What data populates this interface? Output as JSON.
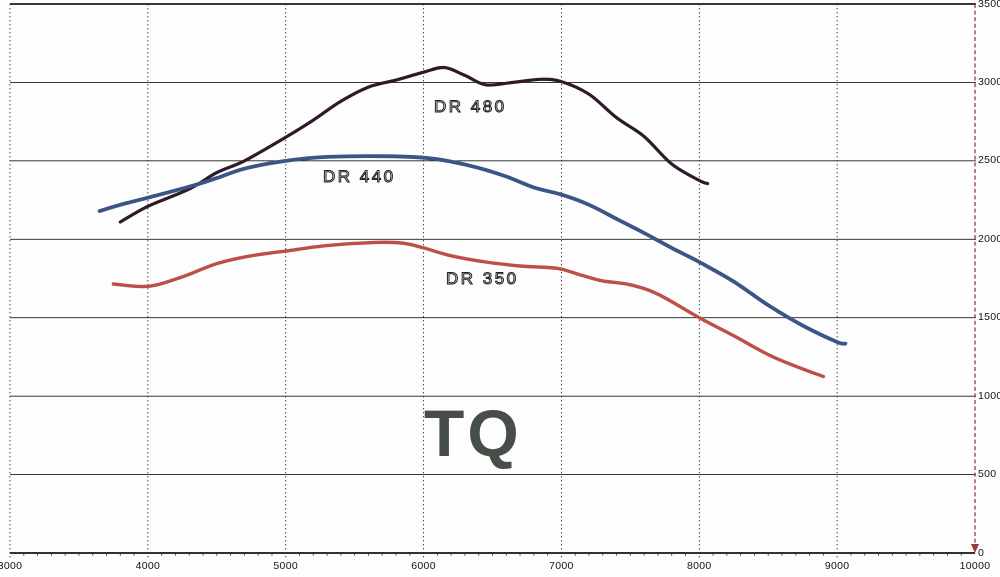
{
  "chart_data": {
    "type": "line",
    "title": "TQ",
    "x_axis": {
      "min": 3000,
      "max": 10000,
      "major_tick_step": 1000,
      "minor_tick_step": 100,
      "tick_labels": [
        "3000",
        "4000",
        "5000",
        "6000",
        "7000",
        "8000",
        "9000",
        "10000"
      ],
      "gridline_style": "dotted"
    },
    "y_axis": {
      "min": 0,
      "max": 3500,
      "major_tick_step": 500,
      "tick_labels": [
        "0",
        "500",
        "1000",
        "1500",
        "2000",
        "2500",
        "3000",
        "3500"
      ],
      "side": "right",
      "gridline_style": "solid"
    },
    "series": [
      {
        "name": "DR 480",
        "color": "#2e1a2b",
        "stroke_width": 3.2,
        "points": [
          [
            3800,
            2110
          ],
          [
            4000,
            2210
          ],
          [
            4300,
            2320
          ],
          [
            4500,
            2425
          ],
          [
            4700,
            2500
          ],
          [
            5000,
            2650
          ],
          [
            5200,
            2760
          ],
          [
            5400,
            2880
          ],
          [
            5600,
            2970
          ],
          [
            5800,
            3015
          ],
          [
            6000,
            3065
          ],
          [
            6150,
            3095
          ],
          [
            6300,
            3045
          ],
          [
            6450,
            2985
          ],
          [
            6650,
            3000
          ],
          [
            6850,
            3020
          ],
          [
            7000,
            3005
          ],
          [
            7200,
            2925
          ],
          [
            7400,
            2775
          ],
          [
            7600,
            2655
          ],
          [
            7800,
            2480
          ],
          [
            8000,
            2375
          ],
          [
            8060,
            2355
          ]
        ]
      },
      {
        "name": "DR 440",
        "color": "#3a5586",
        "stroke_width": 3.8,
        "points": [
          [
            3650,
            2180
          ],
          [
            3800,
            2220
          ],
          [
            4000,
            2265
          ],
          [
            4300,
            2335
          ],
          [
            4500,
            2390
          ],
          [
            4700,
            2450
          ],
          [
            5000,
            2500
          ],
          [
            5300,
            2525
          ],
          [
            5700,
            2530
          ],
          [
            6000,
            2520
          ],
          [
            6200,
            2495
          ],
          [
            6400,
            2455
          ],
          [
            6600,
            2400
          ],
          [
            6800,
            2330
          ],
          [
            7000,
            2285
          ],
          [
            7200,
            2220
          ],
          [
            7400,
            2130
          ],
          [
            7600,
            2040
          ],
          [
            7800,
            1945
          ],
          [
            8000,
            1855
          ],
          [
            8250,
            1730
          ],
          [
            8500,
            1580
          ],
          [
            8750,
            1450
          ],
          [
            9000,
            1345
          ],
          [
            9060,
            1335
          ]
        ]
      },
      {
        "name": "DR 350",
        "color": "#bc4f47",
        "stroke_width": 3.4,
        "points": [
          [
            3750,
            1715
          ],
          [
            4000,
            1700
          ],
          [
            4250,
            1760
          ],
          [
            4500,
            1845
          ],
          [
            4750,
            1895
          ],
          [
            5000,
            1925
          ],
          [
            5300,
            1960
          ],
          [
            5650,
            1980
          ],
          [
            5850,
            1975
          ],
          [
            6000,
            1945
          ],
          [
            6200,
            1895
          ],
          [
            6450,
            1855
          ],
          [
            6700,
            1830
          ],
          [
            6900,
            1820
          ],
          [
            7000,
            1810
          ],
          [
            7150,
            1770
          ],
          [
            7300,
            1735
          ],
          [
            7500,
            1710
          ],
          [
            7700,
            1650
          ],
          [
            8000,
            1500
          ],
          [
            8250,
            1385
          ],
          [
            8500,
            1265
          ],
          [
            8700,
            1190
          ],
          [
            8900,
            1125
          ]
        ]
      }
    ],
    "annotations": {
      "center_label": "TQ"
    },
    "legend": "inline-labels",
    "grid": true
  },
  "colors": {
    "grid": "#1c1c1c",
    "axis": "#141414",
    "minor_tick": "#333333",
    "right_axis": "#9c3a3c",
    "background": "#fdfdfd",
    "big_label_text": "#474d47"
  }
}
